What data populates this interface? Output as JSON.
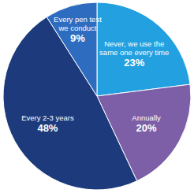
{
  "chart_data": {
    "type": "pie",
    "categories": [
      "Never, we use the same one every time",
      "Annually",
      "Every 2-3 years",
      "Every pen test we conduct"
    ],
    "values": [
      23,
      20,
      48,
      9
    ],
    "value_labels": [
      "23%",
      "20%",
      "48%",
      "9%"
    ],
    "colors": [
      "#22a0e0",
      "#7d5fa8",
      "#1d3b7c",
      "#2d6cbf"
    ],
    "data_labels": true
  }
}
